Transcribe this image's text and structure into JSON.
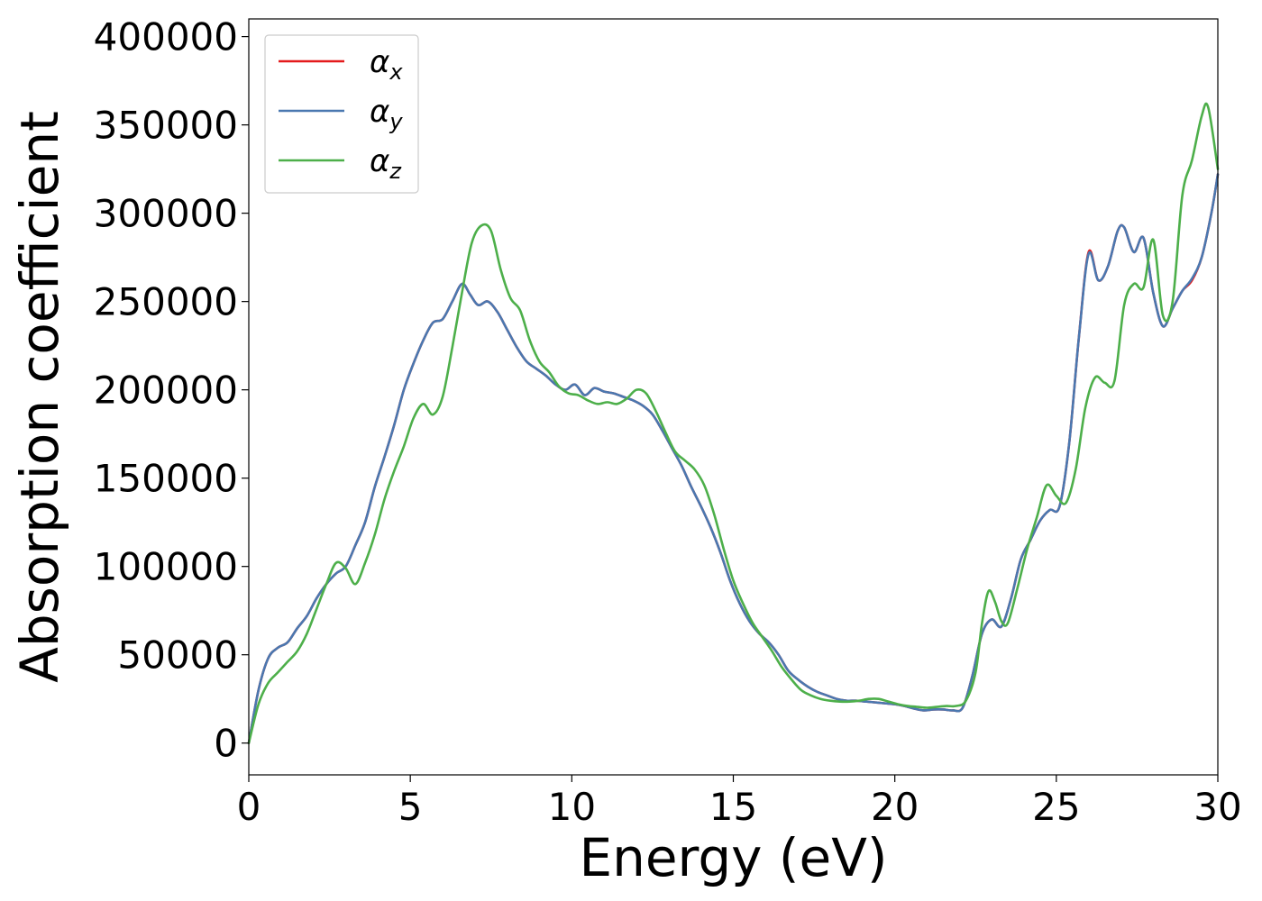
{
  "chart_data": {
    "type": "line",
    "title": "",
    "xlabel": "Energy (eV)",
    "ylabel": "Absorption coefficient",
    "xlim": [
      0,
      30
    ],
    "ylim": [
      -18000,
      410000
    ],
    "xticks": [
      0,
      5,
      10,
      15,
      20,
      25,
      30
    ],
    "yticks": [
      0,
      50000,
      100000,
      150000,
      200000,
      250000,
      300000,
      350000,
      400000
    ],
    "grid": false,
    "legend_position": "top-left",
    "series": [
      {
        "name": "αx",
        "legend_base": "α",
        "legend_sub": "x",
        "color": "#e41a1c",
        "x": [
          0,
          0.3,
          0.6,
          0.9,
          1.2,
          1.5,
          1.8,
          2.1,
          2.4,
          2.7,
          3.0,
          3.3,
          3.6,
          3.9,
          4.2,
          4.5,
          4.8,
          5.1,
          5.4,
          5.7,
          6.0,
          6.3,
          6.6,
          6.85,
          7.1,
          7.4,
          7.7,
          8.0,
          8.3,
          8.6,
          8.9,
          9.2,
          9.5,
          9.8,
          10.1,
          10.4,
          10.7,
          11.0,
          11.3,
          11.6,
          11.9,
          12.2,
          12.5,
          12.8,
          13.1,
          13.4,
          13.7,
          14.0,
          14.3,
          14.6,
          14.9,
          15.2,
          15.5,
          15.8,
          16.1,
          16.4,
          16.7,
          17.0,
          17.3,
          17.6,
          17.9,
          18.2,
          18.5,
          18.8,
          19.1,
          19.4,
          19.7,
          20.0,
          20.3,
          20.6,
          20.9,
          21.2,
          21.5,
          21.8,
          22.1,
          22.4,
          22.7,
          23.0,
          23.3,
          23.6,
          23.9,
          24.2,
          24.5,
          24.8,
          25.1,
          25.4,
          25.7,
          26.0,
          26.3,
          26.6,
          26.9,
          27.1,
          27.4,
          27.7,
          28.0,
          28.3,
          28.6,
          28.9,
          29.2,
          29.5,
          29.8,
          30.0
        ],
        "y": [
          0,
          30000,
          48000,
          54000,
          57000,
          65000,
          72000,
          82000,
          90000,
          96000,
          100000,
          112000,
          125000,
          145000,
          162000,
          180000,
          200000,
          215000,
          228000,
          238000,
          240000,
          250000,
          260000,
          254000,
          248000,
          250000,
          244000,
          234000,
          224000,
          216000,
          212000,
          208000,
          203000,
          200000,
          203000,
          197000,
          201000,
          199000,
          198000,
          196000,
          194000,
          191000,
          186000,
          177000,
          167000,
          157000,
          145000,
          134000,
          122000,
          108000,
          92000,
          79000,
          69000,
          62000,
          57000,
          50000,
          41000,
          36000,
          32000,
          29000,
          27000,
          25000,
          24000,
          24000,
          23500,
          23000,
          22500,
          22000,
          21000,
          19500,
          18500,
          19000,
          19000,
          18500,
          20000,
          38000,
          62000,
          70000,
          66000,
          82000,
          104000,
          115000,
          126000,
          132000,
          134000,
          170000,
          230000,
          278000,
          262000,
          270000,
          290000,
          292000,
          278000,
          286000,
          255000,
          236000,
          246000,
          256000,
          262000,
          275000,
          300000,
          322000
        ]
      },
      {
        "name": "αy",
        "legend_base": "α",
        "legend_sub": "y",
        "color": "#4a78b0",
        "x": [
          0,
          0.3,
          0.6,
          0.9,
          1.2,
          1.5,
          1.8,
          2.1,
          2.4,
          2.7,
          3.0,
          3.3,
          3.6,
          3.9,
          4.2,
          4.5,
          4.8,
          5.1,
          5.4,
          5.7,
          6.0,
          6.3,
          6.6,
          6.85,
          7.1,
          7.4,
          7.7,
          8.0,
          8.3,
          8.6,
          8.9,
          9.2,
          9.5,
          9.8,
          10.1,
          10.4,
          10.7,
          11.0,
          11.3,
          11.6,
          11.9,
          12.2,
          12.5,
          12.8,
          13.1,
          13.4,
          13.7,
          14.0,
          14.3,
          14.6,
          14.9,
          15.2,
          15.5,
          15.8,
          16.1,
          16.4,
          16.7,
          17.0,
          17.3,
          17.6,
          17.9,
          18.2,
          18.5,
          18.8,
          19.1,
          19.4,
          19.7,
          20.0,
          20.3,
          20.6,
          20.9,
          21.2,
          21.5,
          21.8,
          22.1,
          22.4,
          22.7,
          23.0,
          23.3,
          23.6,
          23.9,
          24.2,
          24.5,
          24.8,
          25.1,
          25.4,
          25.7,
          26.0,
          26.3,
          26.6,
          26.9,
          27.1,
          27.4,
          27.7,
          28.0,
          28.3,
          28.6,
          28.9,
          29.2,
          29.5,
          29.8,
          30.0
        ],
        "y": [
          0,
          30000,
          48000,
          54000,
          57000,
          65000,
          72000,
          82000,
          90000,
          96000,
          100000,
          112000,
          125000,
          145000,
          162000,
          180000,
          200000,
          215000,
          228000,
          238000,
          240000,
          250000,
          260000,
          254000,
          248000,
          250000,
          244000,
          234000,
          224000,
          216000,
          212000,
          208000,
          203000,
          200000,
          203000,
          197000,
          201000,
          199000,
          198000,
          196000,
          194000,
          191000,
          186000,
          177000,
          167000,
          157000,
          145000,
          134000,
          122000,
          108000,
          92000,
          79000,
          69000,
          62000,
          57000,
          50000,
          41000,
          36000,
          32000,
          29000,
          27000,
          25000,
          24000,
          24000,
          23500,
          23000,
          22500,
          22000,
          21000,
          19500,
          18500,
          19000,
          19000,
          18500,
          20000,
          38000,
          62000,
          70000,
          66000,
          82000,
          104000,
          115000,
          126000,
          132000,
          134000,
          170000,
          230000,
          277000,
          262000,
          270000,
          290000,
          292000,
          278000,
          286000,
          255000,
          236000,
          246000,
          256000,
          263000,
          275000,
          300000,
          322000
        ]
      },
      {
        "name": "αz",
        "legend_base": "α",
        "legend_sub": "z",
        "color": "#4daf4a",
        "x": [
          0,
          0.3,
          0.6,
          0.9,
          1.2,
          1.5,
          1.8,
          2.1,
          2.4,
          2.7,
          3.0,
          3.3,
          3.6,
          3.9,
          4.2,
          4.5,
          4.8,
          5.1,
          5.4,
          5.7,
          6.0,
          6.3,
          6.6,
          6.9,
          7.2,
          7.5,
          7.8,
          8.1,
          8.4,
          8.7,
          9.0,
          9.3,
          9.6,
          9.9,
          10.2,
          10.5,
          10.8,
          11.1,
          11.4,
          11.7,
          12.0,
          12.3,
          12.6,
          12.9,
          13.2,
          13.5,
          13.8,
          14.1,
          14.4,
          14.7,
          15.0,
          15.3,
          15.6,
          15.9,
          16.2,
          16.5,
          16.8,
          17.1,
          17.4,
          17.7,
          18.0,
          18.3,
          18.6,
          18.9,
          19.2,
          19.5,
          19.8,
          20.1,
          20.4,
          20.7,
          21.0,
          21.3,
          21.6,
          21.9,
          22.2,
          22.5,
          22.7,
          22.9,
          23.1,
          23.3,
          23.5,
          23.8,
          24.1,
          24.4,
          24.7,
          25.0,
          25.3,
          25.6,
          25.9,
          26.2,
          26.5,
          26.8,
          27.1,
          27.4,
          27.7,
          28.0,
          28.3,
          28.6,
          28.9,
          29.2,
          29.5,
          29.7,
          30.0
        ],
        "y": [
          0,
          22000,
          34000,
          40000,
          46000,
          52000,
          62000,
          76000,
          90000,
          102000,
          99000,
          90000,
          102000,
          118000,
          138000,
          154000,
          168000,
          184000,
          192000,
          186000,
          196000,
          224000,
          255000,
          283000,
          293000,
          290000,
          268000,
          252000,
          245000,
          228000,
          216000,
          210000,
          202000,
          198000,
          197000,
          194000,
          192000,
          193000,
          192000,
          195000,
          200000,
          198000,
          188000,
          176000,
          165000,
          160000,
          155000,
          146000,
          130000,
          110000,
          92000,
          79000,
          68000,
          60000,
          52000,
          43000,
          36000,
          30000,
          27000,
          25000,
          24000,
          23500,
          23500,
          24000,
          25000,
          25000,
          23500,
          22000,
          21000,
          20500,
          20000,
          20500,
          21000,
          21000,
          24000,
          40000,
          68000,
          86000,
          80000,
          69000,
          68000,
          88000,
          110000,
          128000,
          146000,
          140000,
          136000,
          155000,
          190000,
          207000,
          204000,
          205000,
          248000,
          260000,
          258000,
          285000,
          242000,
          250000,
          310000,
          330000,
          355000,
          360000,
          325000
        ]
      }
    ]
  }
}
